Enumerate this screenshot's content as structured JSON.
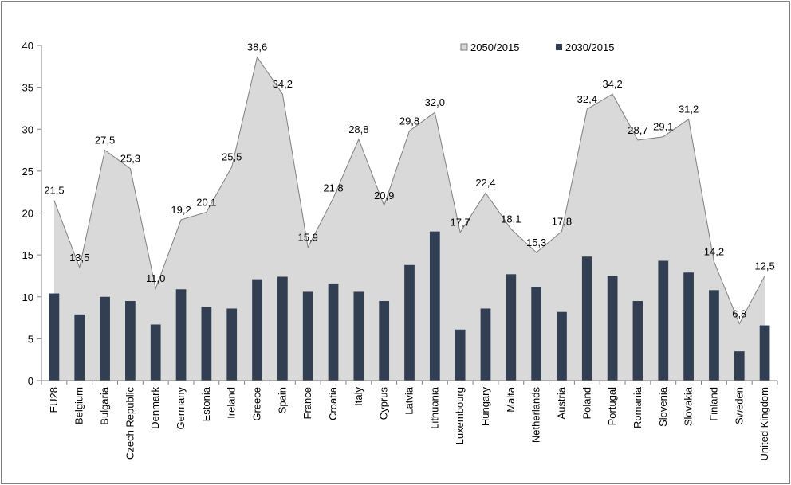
{
  "chart_data": {
    "type": "bar-area",
    "categories": [
      "EU28",
      "Belgium",
      "Bulgaria",
      "Czech Republic",
      "Denmark",
      "Germany",
      "Estonia",
      "Ireland",
      "Greece",
      "Spain",
      "France",
      "Croatia",
      "Italy",
      "Cyprus",
      "Latvia",
      "Lithuania",
      "Luxembourg",
      "Hungary",
      "Malta",
      "Netherlands",
      "Austria",
      "Poland",
      "Portugal",
      "Romania",
      "Slovenia",
      "Slovakia",
      "Finland",
      "Sweden",
      "United Kingdom"
    ],
    "series": [
      {
        "name": "2050/2015",
        "kind": "area",
        "color": "#d9d9d9",
        "line_color": "#7f7f7f",
        "values": [
          21.5,
          13.5,
          27.5,
          25.3,
          11.0,
          19.2,
          20.1,
          25.5,
          38.6,
          34.2,
          15.9,
          21.8,
          28.8,
          20.9,
          29.8,
          32.0,
          17.7,
          22.4,
          18.1,
          15.3,
          17.8,
          32.4,
          34.2,
          28.7,
          29.1,
          31.2,
          14.2,
          6.8,
          12.5
        ],
        "value_labels": [
          "21,5",
          "13,5",
          "27,5",
          "25,3",
          "11,0",
          "19,2",
          "20,1",
          "25,5",
          "38,6",
          "34,2",
          "15,9",
          "21,8",
          "28,8",
          "20,9",
          "29,8",
          "32,0",
          "17,7",
          "22,4",
          "18,1",
          "15,3",
          "17,8",
          "32,4",
          "34,2",
          "28,7",
          "29,1",
          "31,2",
          "14,2",
          "6,8",
          "12,5"
        ]
      },
      {
        "name": "2030/2015",
        "kind": "bar",
        "color": "#323e52",
        "values": [
          10.4,
          7.9,
          10.0,
          9.5,
          6.7,
          10.9,
          8.8,
          8.6,
          12.1,
          12.4,
          10.6,
          11.6,
          10.6,
          9.5,
          13.8,
          17.8,
          6.1,
          8.6,
          12.7,
          11.2,
          8.2,
          14.8,
          12.5,
          9.5,
          14.3,
          12.9,
          10.8,
          3.5,
          6.6
        ]
      }
    ],
    "ylim": [
      0,
      40
    ],
    "yticks": [
      0,
      5,
      10,
      15,
      20,
      25,
      30,
      35,
      40
    ],
    "grid": false
  }
}
